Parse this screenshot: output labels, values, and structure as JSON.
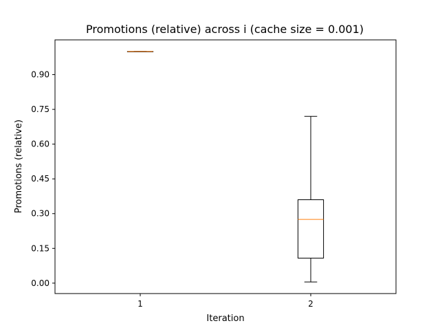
{
  "chart_data": {
    "type": "box",
    "title": "Promotions (relative) across i (cache size = 0.001)",
    "xlabel": "Iteration",
    "ylabel": "Promotions (relative)",
    "categories": [
      "1",
      "2"
    ],
    "ylim": [
      -0.045,
      1.05
    ],
    "yticks": [
      0.0,
      0.15,
      0.3,
      0.45,
      0.6,
      0.75,
      0.9
    ],
    "ytick_labels": [
      "0.00",
      "0.15",
      "0.30",
      "0.45",
      "0.60",
      "0.75",
      "0.90"
    ],
    "grid": false,
    "boxes": [
      {
        "category": "1",
        "whisker_low": 1.0,
        "q1": 1.0,
        "median": 1.0,
        "q3": 1.0,
        "whisker_high": 1.0
      },
      {
        "category": "2",
        "whisker_low": 0.005,
        "q1": 0.108,
        "median": 0.275,
        "q3": 0.36,
        "whisker_high": 0.72
      }
    ],
    "colors": {
      "box": "#000000",
      "median": "#ff7f0e"
    }
  }
}
